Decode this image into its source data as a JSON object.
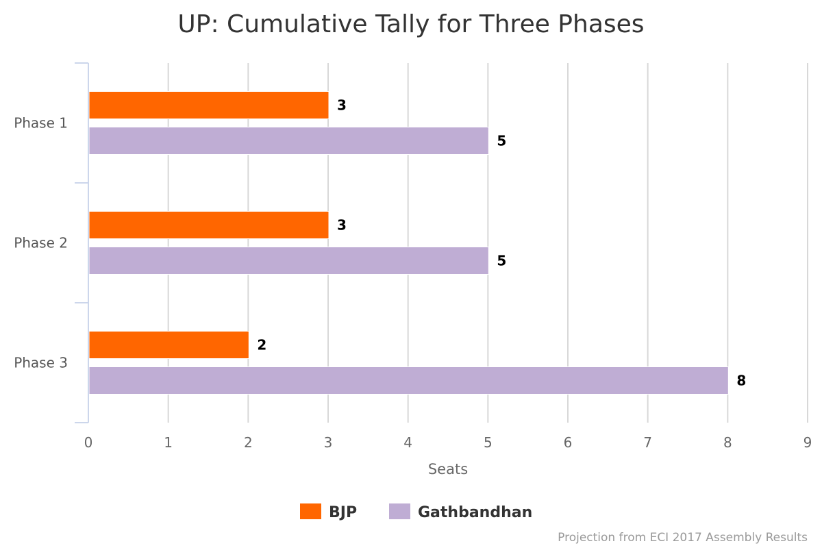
{
  "chart_data": {
    "type": "bar",
    "orientation": "horizontal",
    "title": "UP: Cumulative Tally for Three Phases",
    "categories": [
      "Phase 1",
      "Phase 2",
      "Phase 3"
    ],
    "series": [
      {
        "name": "BJP",
        "color": "#ff6600",
        "values": [
          3,
          3,
          2
        ]
      },
      {
        "name": "Gathbandhan",
        "color": "#bfadd4",
        "values": [
          5,
          5,
          8
        ]
      }
    ],
    "xlabel": "Seats",
    "ylabel": "",
    "xlim": [
      0,
      9
    ],
    "x_ticks": [
      "0",
      "1",
      "2",
      "3",
      "4",
      "5",
      "6",
      "7",
      "8",
      "9"
    ],
    "grid": true,
    "data_labels": true,
    "legend_position": "bottom-center",
    "credits": "Projection from ECI 2017 Assembly Results"
  }
}
